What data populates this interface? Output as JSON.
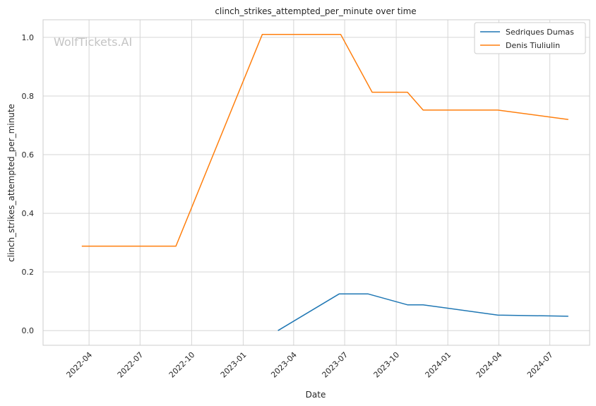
{
  "chart_data": {
    "type": "line",
    "title": "clinch_strikes_attempted_per_minute over time",
    "xlabel": "Date",
    "ylabel": "clinch_strikes_attempted_per_minute",
    "watermark": "WolfTickets.AI",
    "xlim": [
      "2022-01-09",
      "2024-09-10"
    ],
    "ylim": [
      -0.05,
      1.06
    ],
    "x_ticks": [
      "2022-04",
      "2022-07",
      "2022-10",
      "2023-01",
      "2023-04",
      "2023-07",
      "2023-10",
      "2024-01",
      "2024-04",
      "2024-07"
    ],
    "y_ticks": [
      0.0,
      0.2,
      0.4,
      0.6,
      0.8,
      1.0
    ],
    "y_tick_labels": [
      "0.0",
      "0.2",
      "0.4",
      "0.6",
      "0.8",
      "1.0"
    ],
    "grid": true,
    "legend_position": "top-right",
    "series": [
      {
        "name": "Sedriques Dumas",
        "color": "#1f77b4",
        "points": [
          {
            "x": "2023-03-04",
            "y": 0.0
          },
          {
            "x": "2023-06-21",
            "y": 0.125
          },
          {
            "x": "2023-08-12",
            "y": 0.125
          },
          {
            "x": "2023-10-21",
            "y": 0.088
          },
          {
            "x": "2023-11-18",
            "y": 0.088
          },
          {
            "x": "2024-03-30",
            "y": 0.053
          },
          {
            "x": "2024-08-03",
            "y": 0.049
          }
        ]
      },
      {
        "name": "Denis Tiuliulin",
        "color": "#ff7f0e",
        "points": [
          {
            "x": "2022-03-19",
            "y": 0.288
          },
          {
            "x": "2022-09-03",
            "y": 0.288
          },
          {
            "x": "2023-02-04",
            "y": 1.01
          },
          {
            "x": "2023-06-24",
            "y": 1.01
          },
          {
            "x": "2023-08-19",
            "y": 0.813
          },
          {
            "x": "2023-10-21",
            "y": 0.813
          },
          {
            "x": "2023-11-18",
            "y": 0.752
          },
          {
            "x": "2024-03-30",
            "y": 0.752
          },
          {
            "x": "2024-08-03",
            "y": 0.72
          }
        ]
      }
    ]
  }
}
